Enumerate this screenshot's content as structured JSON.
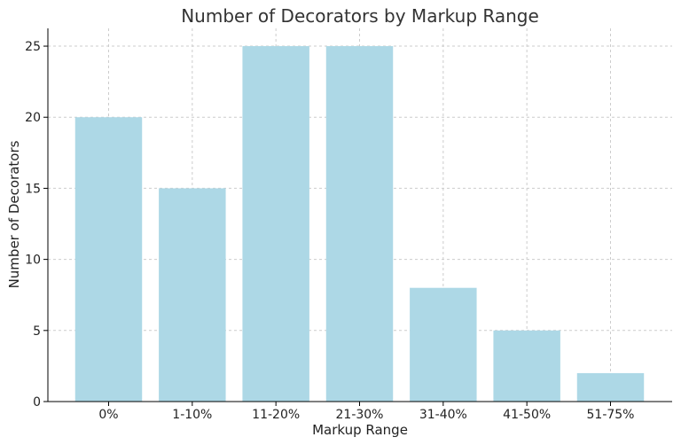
{
  "chart_data": {
    "type": "bar",
    "title": "Number of Decorators by Markup Range",
    "xlabel": "Markup Range",
    "ylabel": "Number of Decorators",
    "categories": [
      "0%",
      "1-10%",
      "11-20%",
      "21-30%",
      "31-40%",
      "41-50%",
      "51-75%"
    ],
    "values": [
      20,
      15,
      25,
      25,
      8,
      5,
      2
    ],
    "yticks": [
      0,
      5,
      10,
      15,
      20,
      25
    ],
    "ylim": [
      0,
      26.25
    ],
    "grid": true,
    "bar_color": "#add8e6"
  }
}
